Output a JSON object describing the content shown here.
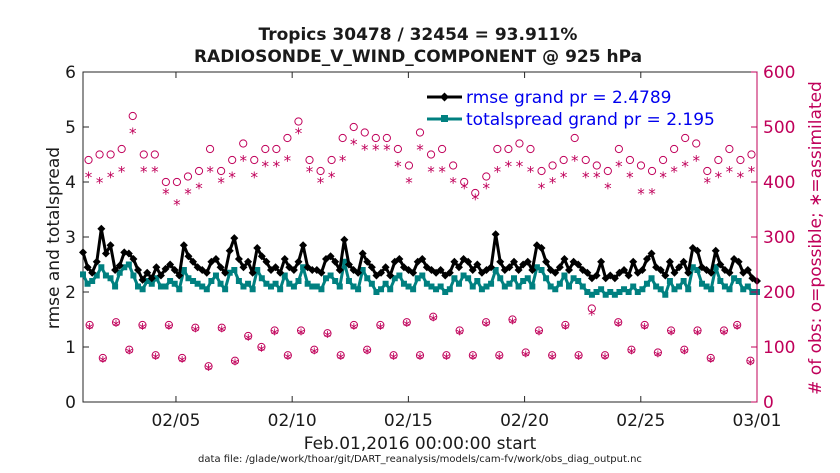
{
  "chart_data": {
    "type": "line",
    "title_line1": "Tropics 30478 / 32454 = 93.911%",
    "title_line2": "RADIOSONDE_V_WIND_COMPONENT @ 925 hPa",
    "xlabel": "Feb.01,2016 00:00:00 start",
    "ylabel_left": "rmse and totalspread",
    "ylabel_right": "# of obs: o=possible; ∗=assimilated",
    "footnote": "data file: /glade/work/thoar/git/DART_reanalysis/models/cam-fv/work/obs_diag_output.nc",
    "x_range": [
      1,
      30
    ],
    "x_ticks": [
      {
        "value": 5,
        "label": "02/05"
      },
      {
        "value": 10,
        "label": "02/10"
      },
      {
        "value": 15,
        "label": "02/15"
      },
      {
        "value": 20,
        "label": "02/20"
      },
      {
        "value": 25,
        "label": "02/25"
      },
      {
        "value": 30,
        "label": "03/01"
      }
    ],
    "ylim_left": [
      0,
      6
    ],
    "y_ticks_left": [
      "0",
      "1",
      "2",
      "3",
      "4",
      "5",
      "6"
    ],
    "ylim_right": [
      0,
      600
    ],
    "y_ticks_right": [
      "0",
      "100",
      "200",
      "300",
      "400",
      "500",
      "600"
    ],
    "colors": {
      "rmse": "#000000",
      "spread": "#008080",
      "obs": "#c0005a",
      "legend_text": "#0000ee"
    },
    "series": [
      {
        "name": "rmse grand pr = 2.4789",
        "axis": "left",
        "values": [
          2.72,
          2.45,
          2.35,
          2.55,
          3.15,
          2.7,
          2.85,
          2.4,
          2.48,
          2.72,
          2.7,
          2.6,
          2.4,
          2.22,
          2.35,
          2.25,
          2.45,
          2.3,
          2.42,
          2.5,
          2.4,
          2.3,
          2.85,
          2.65,
          2.55,
          2.45,
          2.4,
          2.35,
          2.55,
          2.6,
          2.45,
          2.35,
          2.75,
          2.98,
          2.6,
          2.45,
          2.55,
          2.35,
          2.8,
          2.65,
          2.55,
          2.4,
          2.45,
          2.35,
          2.6,
          2.45,
          2.4,
          2.55,
          2.85,
          2.45,
          2.4,
          2.4,
          2.35,
          2.6,
          2.65,
          2.55,
          2.4,
          2.95,
          2.5,
          2.4,
          2.35,
          2.7,
          2.55,
          2.45,
          2.3,
          2.35,
          2.45,
          2.3,
          2.55,
          2.6,
          2.45,
          2.4,
          2.35,
          2.55,
          2.6,
          2.45,
          2.4,
          2.35,
          2.4,
          2.3,
          2.35,
          2.55,
          2.45,
          2.6,
          2.55,
          2.4,
          2.5,
          2.35,
          2.4,
          2.45,
          3.05,
          2.55,
          2.4,
          2.45,
          2.55,
          2.4,
          2.5,
          2.55,
          2.4,
          2.85,
          2.8,
          2.55,
          2.4,
          2.35,
          2.45,
          2.6,
          2.4,
          2.55,
          2.5,
          2.4,
          2.35,
          2.25,
          2.3,
          2.55,
          2.25,
          2.3,
          2.25,
          2.35,
          2.4,
          2.3,
          2.55,
          2.35,
          2.4,
          2.6,
          2.7,
          2.45,
          2.4,
          2.3,
          2.55,
          2.35,
          2.45,
          2.55,
          2.35,
          2.8,
          2.75,
          2.45,
          2.4,
          2.35,
          2.75,
          2.5,
          2.4,
          2.35,
          2.6,
          2.55,
          2.35,
          2.4,
          2.25,
          2.2
        ]
      },
      {
        "name": "totalspread grand pr = 2.195",
        "axis": "left",
        "values": [
          2.32,
          2.15,
          2.2,
          2.3,
          2.45,
          2.3,
          2.25,
          2.1,
          2.35,
          2.45,
          2.5,
          2.3,
          2.1,
          2.05,
          2.2,
          2.15,
          2.25,
          2.1,
          2.1,
          2.2,
          2.15,
          2.05,
          2.4,
          2.25,
          2.2,
          2.15,
          2.1,
          2.05,
          2.2,
          2.3,
          2.15,
          2.05,
          2.35,
          2.4,
          2.2,
          2.1,
          2.15,
          2.05,
          2.4,
          2.25,
          2.15,
          2.1,
          2.15,
          2.05,
          2.3,
          2.15,
          2.1,
          2.2,
          2.45,
          2.15,
          2.1,
          2.1,
          2.05,
          2.25,
          2.3,
          2.2,
          2.1,
          2.55,
          2.2,
          2.1,
          2.05,
          2.4,
          2.25,
          2.15,
          2.0,
          2.05,
          2.15,
          2.05,
          2.25,
          2.3,
          2.15,
          2.1,
          2.05,
          2.25,
          2.3,
          2.15,
          2.1,
          2.05,
          2.1,
          2.0,
          2.05,
          2.25,
          2.15,
          2.3,
          2.25,
          2.1,
          2.2,
          2.05,
          2.1,
          2.15,
          2.4,
          2.25,
          2.1,
          2.15,
          2.25,
          2.1,
          2.2,
          2.25,
          2.1,
          2.45,
          2.4,
          2.25,
          2.1,
          2.05,
          2.15,
          2.3,
          2.1,
          2.25,
          2.2,
          2.1,
          2.0,
          1.95,
          2.0,
          2.05,
          1.95,
          2.0,
          1.95,
          2.0,
          2.05,
          2.0,
          2.1,
          2.0,
          2.05,
          2.15,
          2.25,
          2.1,
          2.05,
          1.95,
          2.2,
          2.05,
          2.1,
          2.2,
          2.05,
          2.45,
          2.4,
          2.15,
          2.1,
          2.05,
          2.45,
          2.2,
          2.1,
          2.05,
          2.25,
          2.2,
          2.05,
          2.1,
          2.0,
          2.0
        ]
      },
      {
        "name": "possible obs (upper, by day)",
        "axis": "right",
        "values": [
          440,
          450,
          450,
          460,
          520,
          450,
          450,
          400,
          400,
          410,
          420,
          460,
          420,
          440,
          470,
          440,
          460,
          460,
          480,
          510,
          440,
          420,
          440,
          480,
          500,
          490,
          480,
          480,
          460,
          430,
          490,
          450,
          460,
          430,
          400,
          380,
          410,
          460,
          460,
          470,
          460,
          420,
          430,
          440,
          480,
          440,
          430,
          420,
          460,
          440,
          430,
          420,
          440,
          460,
          480,
          470,
          420,
          440,
          460,
          440,
          450
        ]
      },
      {
        "name": "assimilated obs (upper, by day)",
        "axis": "right",
        "values": [
          410,
          400,
          410,
          420,
          490,
          420,
          420,
          380,
          360,
          380,
          390,
          420,
          400,
          410,
          440,
          410,
          430,
          430,
          440,
          490,
          420,
          400,
          410,
          440,
          470,
          460,
          460,
          460,
          430,
          400,
          460,
          420,
          420,
          400,
          390,
          370,
          390,
          420,
          430,
          430,
          420,
          390,
          400,
          410,
          440,
          410,
          410,
          390,
          430,
          410,
          380,
          380,
          410,
          420,
          430,
          440,
          400,
          410,
          420,
          410,
          420
        ]
      },
      {
        "name": "possible obs (lower, by day)",
        "axis": "right",
        "values": [
          140,
          80,
          145,
          95,
          140,
          85,
          140,
          80,
          135,
          65,
          135,
          75,
          120,
          100,
          130,
          85,
          130,
          95,
          125,
          85,
          140,
          95,
          140,
          85,
          145,
          85,
          155,
          85,
          130,
          85,
          145,
          85,
          150,
          90,
          130,
          85,
          140,
          85,
          170,
          85,
          145,
          95,
          140,
          90,
          130,
          95,
          130,
          80,
          130,
          140,
          75
        ]
      },
      {
        "name": "assimilated obs (lower, by day)",
        "axis": "right",
        "values": [
          135,
          75,
          140,
          90,
          135,
          80,
          135,
          75,
          130,
          60,
          130,
          70,
          115,
          95,
          125,
          80,
          125,
          90,
          120,
          80,
          135,
          90,
          135,
          80,
          140,
          80,
          150,
          80,
          125,
          80,
          140,
          80,
          145,
          85,
          125,
          80,
          135,
          80,
          160,
          80,
          140,
          90,
          135,
          85,
          125,
          90,
          125,
          75,
          125,
          135,
          70
        ]
      }
    ],
    "legend": [
      {
        "label": "rmse grand pr = 2.4789",
        "series": 0
      },
      {
        "label": "totalspread grand pr = 2.195",
        "series": 1
      }
    ]
  }
}
